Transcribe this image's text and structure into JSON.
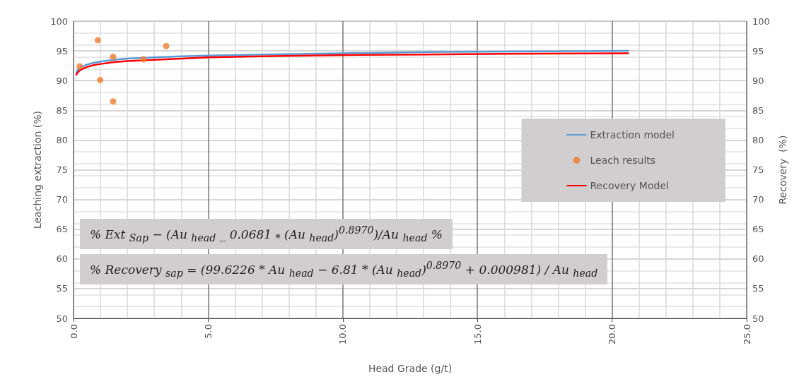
{
  "chart_data": {
    "type": "line",
    "xlabel": "Head Grade (g/t)",
    "ylabel": "Leaching extraction (%)",
    "y2label": "Recovery  (%)",
    "xlim": [
      0,
      25
    ],
    "xticks": [
      {
        "value": 0,
        "label": "0.0"
      },
      {
        "value": 5,
        "label": "5.0"
      },
      {
        "value": 10,
        "label": "10.0"
      },
      {
        "value": 15,
        "label": "15.0"
      },
      {
        "value": 20,
        "label": "20.0"
      },
      {
        "value": 25,
        "label": "25.0"
      }
    ],
    "ylim": [
      50,
      100
    ],
    "yticks": [
      50,
      55,
      60,
      65,
      70,
      75,
      80,
      85,
      90,
      95,
      100
    ],
    "y2lim": [
      50,
      100
    ],
    "y2ticks": [
      50,
      55,
      60,
      65,
      70,
      75,
      80,
      85,
      90,
      95,
      100
    ],
    "grid": true,
    "legend": "right",
    "marker": "none",
    "line_style": "solid",
    "series": [
      {
        "name": "Extraction model",
        "color": "#5b9bd5",
        "x": [
          0.1,
          0.2,
          0.3,
          0.5,
          0.75,
          1,
          1.5,
          2,
          3,
          4,
          5,
          7,
          10,
          13,
          16,
          20.6
        ],
        "values": [
          91.4,
          92.0,
          92.3,
          92.7,
          93.0,
          93.2,
          93.5,
          93.7,
          93.9,
          94.1,
          94.2,
          94.4,
          94.6,
          94.8,
          94.9,
          95.0
        ]
      },
      {
        "name": "Leach results",
        "type": "scatter",
        "marker": "circle",
        "color": "#ed7d31",
        "x": [
          0.23,
          0.9,
          0.99,
          1.47,
          1.47,
          2.59,
          3.44
        ],
        "values": [
          92.4,
          96.8,
          90.1,
          94.0,
          86.5,
          93.6,
          95.8
        ]
      },
      {
        "name": "Recovery Model",
        "type": "line",
        "axis": "y2",
        "color": "#ff0000",
        "x": [
          0.1,
          0.2,
          0.3,
          0.5,
          0.75,
          1,
          1.5,
          2,
          3,
          4,
          5,
          7,
          10,
          13,
          16,
          20.6
        ],
        "values": [
          91.0,
          91.6,
          91.9,
          92.3,
          92.6,
          92.8,
          93.1,
          93.3,
          93.5,
          93.7,
          93.9,
          94.1,
          94.3,
          94.4,
          94.5,
          94.6
        ]
      }
    ],
    "annotations": [
      "% Ext $_{Sap}$ − (Au $_{head}$ _ 0.0681 $_{*}$ (Au $_{head}$)$^{0.8970}$)/Au $_{head}$ %",
      "% Recovery $_{sap}$ = (99.6226 * Au $_{head}$ − 6.81 * (Au $_{head}$)$^{0.8970}$ + 0.000981) / Au $_{head}$"
    ]
  }
}
